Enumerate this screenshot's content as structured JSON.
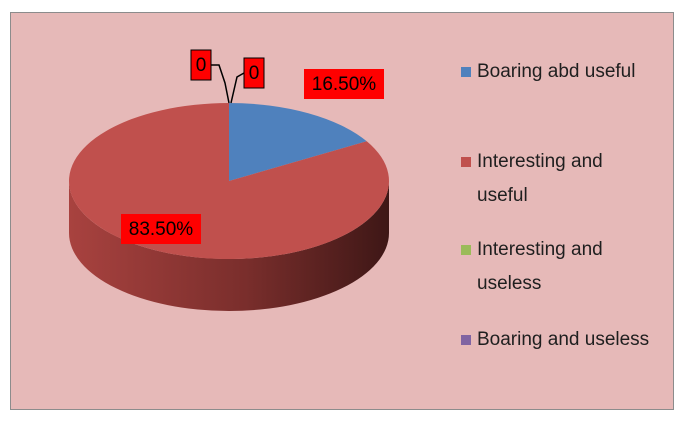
{
  "chart_data": {
    "type": "pie",
    "categories": [
      "Boaring abd useful",
      "Interesting and useful",
      "Interesting and useless",
      "Boaring and useless"
    ],
    "values": [
      16.5,
      83.5,
      0,
      0
    ],
    "value_labels": [
      "16.50%",
      "83.50%",
      "0",
      "0"
    ],
    "colors": [
      "#4f81bd",
      "#c0504d",
      "#9bbb59",
      "#8064a2"
    ],
    "legend": "right"
  }
}
